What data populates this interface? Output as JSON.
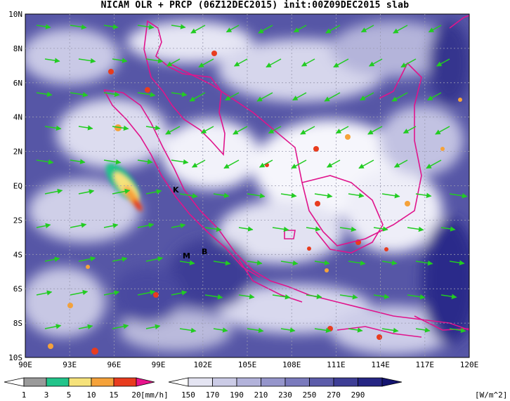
{
  "title": "NICAM OLR + PRCP (06Z12DEC2015) init:00Z09DEC2015 slab",
  "map": {
    "lat_labels": [
      "10N",
      "8N",
      "6N",
      "4N",
      "2N",
      "EQ",
      "2S",
      "4S",
      "6S",
      "8S",
      "10S"
    ],
    "lon_labels": [
      "90E",
      "93E",
      "96E",
      "99E",
      "102E",
      "105E",
      "108E",
      "111E",
      "114E",
      "117E",
      "120E"
    ],
    "station_labels": [
      "K",
      "M",
      "B"
    ],
    "coast_color": "#e0148c",
    "vector_color": "#22cc22"
  },
  "legend_prcp": {
    "values": [
      "1",
      "3",
      "5",
      "10",
      "15",
      "20"
    ],
    "unit": "[mm/h]",
    "colors": [
      "#9a9a9a",
      "#22c48a",
      "#f6e27a",
      "#f5a23a",
      "#e83c1e",
      "#e8148c"
    ]
  },
  "legend_olr": {
    "values": [
      "150",
      "170",
      "190",
      "210",
      "230",
      "250",
      "270",
      "290"
    ],
    "unit": "[W/m^2]",
    "colors": [
      "#ffffff",
      "#e4e4f2",
      "#cbcbe6",
      "#b2b2da",
      "#9595cb",
      "#7a7abd",
      "#5c5caa",
      "#3e3e96",
      "#252584",
      "#141470"
    ]
  }
}
